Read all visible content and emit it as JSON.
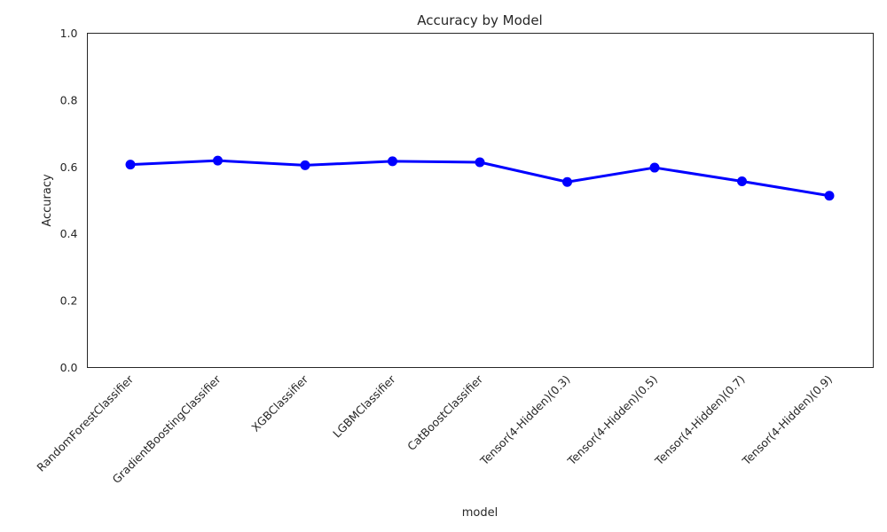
{
  "chart_data": {
    "type": "line",
    "title": "Accuracy by Model",
    "xlabel": "model",
    "ylabel": "Accuracy",
    "ylim": [
      0,
      1
    ],
    "yticks": [
      0.0,
      0.2,
      0.4,
      0.6,
      0.8,
      1.0
    ],
    "ytick_labels": [
      "0.0",
      "0.2",
      "0.4",
      "0.6",
      "0.8",
      "1.0"
    ],
    "grid": false,
    "line_color": "#0000ff",
    "categories": [
      "RandomForestClassifier",
      "GradientBoostingClassifier",
      "XGBClassifier",
      "LGBMClassifier",
      "CatBoostClassifier",
      "Tensor(4-Hidden)(0.3)",
      "Tensor(4-Hidden)(0.5)",
      "Tensor(4-Hidden)(0.7)",
      "Tensor(4-Hidden)(0.9)"
    ],
    "values": [
      0.607,
      0.619,
      0.605,
      0.617,
      0.614,
      0.555,
      0.598,
      0.557,
      0.514
    ]
  }
}
